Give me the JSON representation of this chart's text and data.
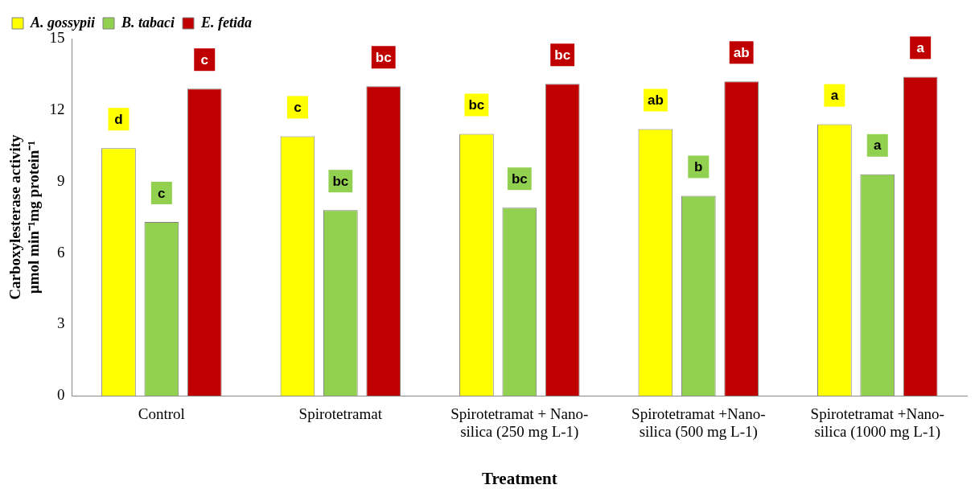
{
  "chart_data": {
    "type": "bar",
    "xlabel": "Treatment",
    "ylabel": "Carboxylesterase activity\nµmol min⁻¹mg protein⁻¹",
    "categories": [
      "Control",
      "Spirotetramat",
      "Spirotetramat + Nano-\nsilica (250 mg L-1)",
      "Spirotetramat +Nano-\nsilica (500 mg L-1)",
      "Spirotetramat +Nano-\nsilica (1000 mg L-1)"
    ],
    "series": [
      {
        "name": "A. gossypii",
        "color": "#ffff00",
        "values": [
          10.4,
          10.9,
          11.0,
          11.2,
          11.4
        ],
        "value_labels": [
          "d",
          "c",
          "bc",
          "ab",
          "a"
        ]
      },
      {
        "name": "B. tabaci",
        "color": "#92d050",
        "values": [
          7.3,
          7.8,
          7.9,
          8.4,
          9.3
        ],
        "value_labels": [
          "c",
          "bc",
          "bc",
          "b",
          "a"
        ]
      },
      {
        "name": "E. fetida",
        "color": "#c00000",
        "values": [
          12.9,
          13.0,
          13.1,
          13.2,
          13.4
        ],
        "value_labels": [
          "c",
          "bc",
          "bc",
          "ab",
          "a"
        ]
      }
    ],
    "ylim": [
      0,
      15
    ],
    "yticks": [
      0,
      3,
      6,
      9,
      12,
      15
    ],
    "grid": false,
    "legend": "top left"
  }
}
